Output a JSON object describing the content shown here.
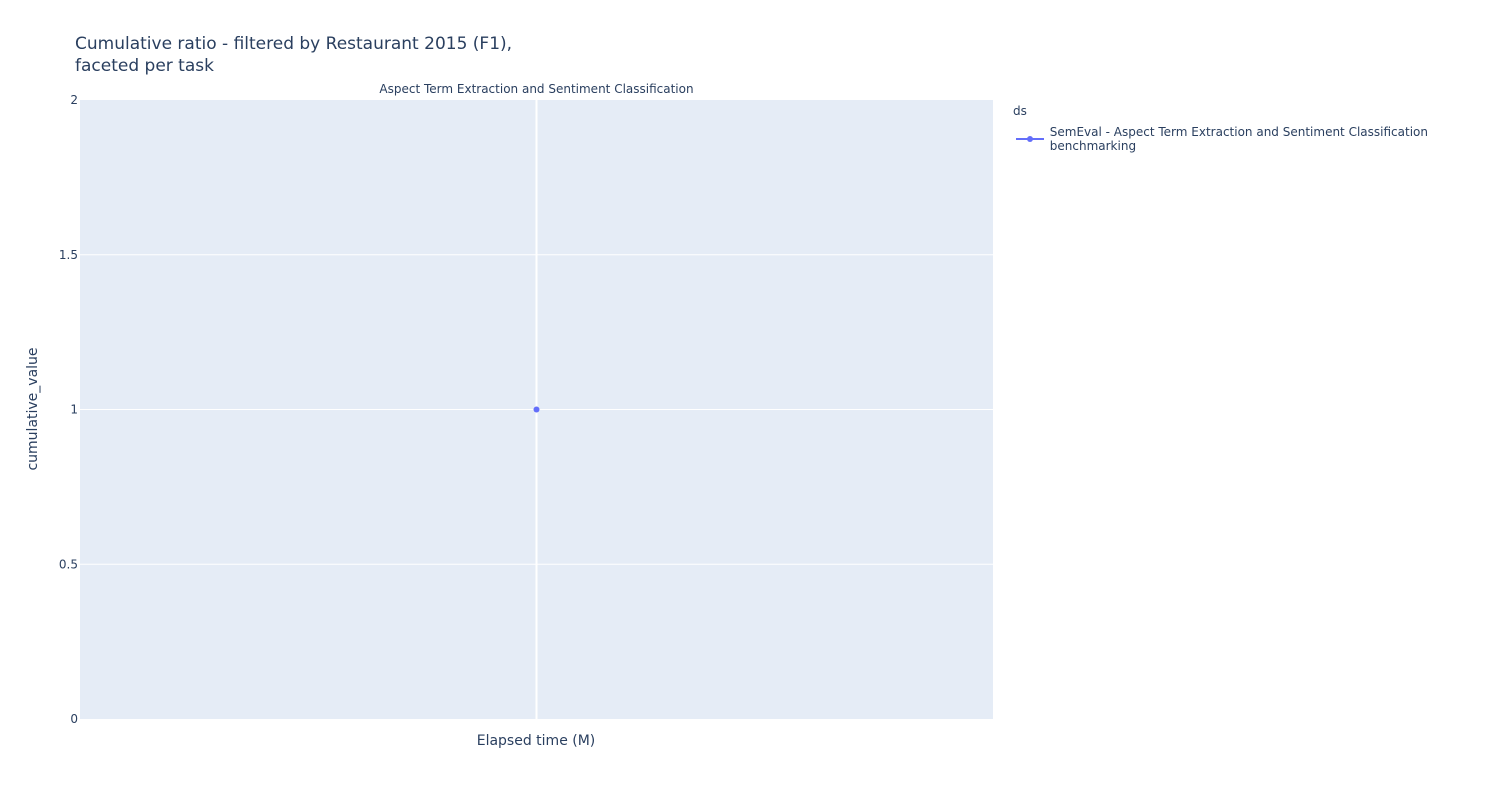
{
  "title_lines": [
    "Cumulative ratio - filtered by Restaurant 2015 (F1),",
    "faceted per task"
  ],
  "facet_title": "Aspect Term Extraction and Sentiment Classification",
  "legend": {
    "title": "ds",
    "placement": "right",
    "items": [
      {
        "label": "SemEval - Aspect Term Extraction and Sentiment Classification benchmarking",
        "color": "#636efa"
      }
    ]
  },
  "colors": {
    "plot_bg": "#e5ecf6",
    "grid": "#ffffff",
    "text": "#2a3f5f",
    "series": "#636efa"
  },
  "chart_data": {
    "type": "line",
    "title": "Cumulative ratio - filtered by Restaurant 2015 (F1), faceted per task",
    "xlabel": "Elapsed time (M)",
    "ylabel": "cumulative_value",
    "ylim": [
      0,
      2
    ],
    "yticks": [
      "0",
      "0.5",
      "1",
      "1.5",
      "2"
    ],
    "ytick_values": [
      0,
      0.5,
      1,
      1.5,
      2
    ],
    "grid": true,
    "series": [
      {
        "name": "SemEval - Aspect Term Extraction and Sentiment Classification benchmarking",
        "color": "#636efa",
        "y": [
          1
        ]
      }
    ]
  }
}
